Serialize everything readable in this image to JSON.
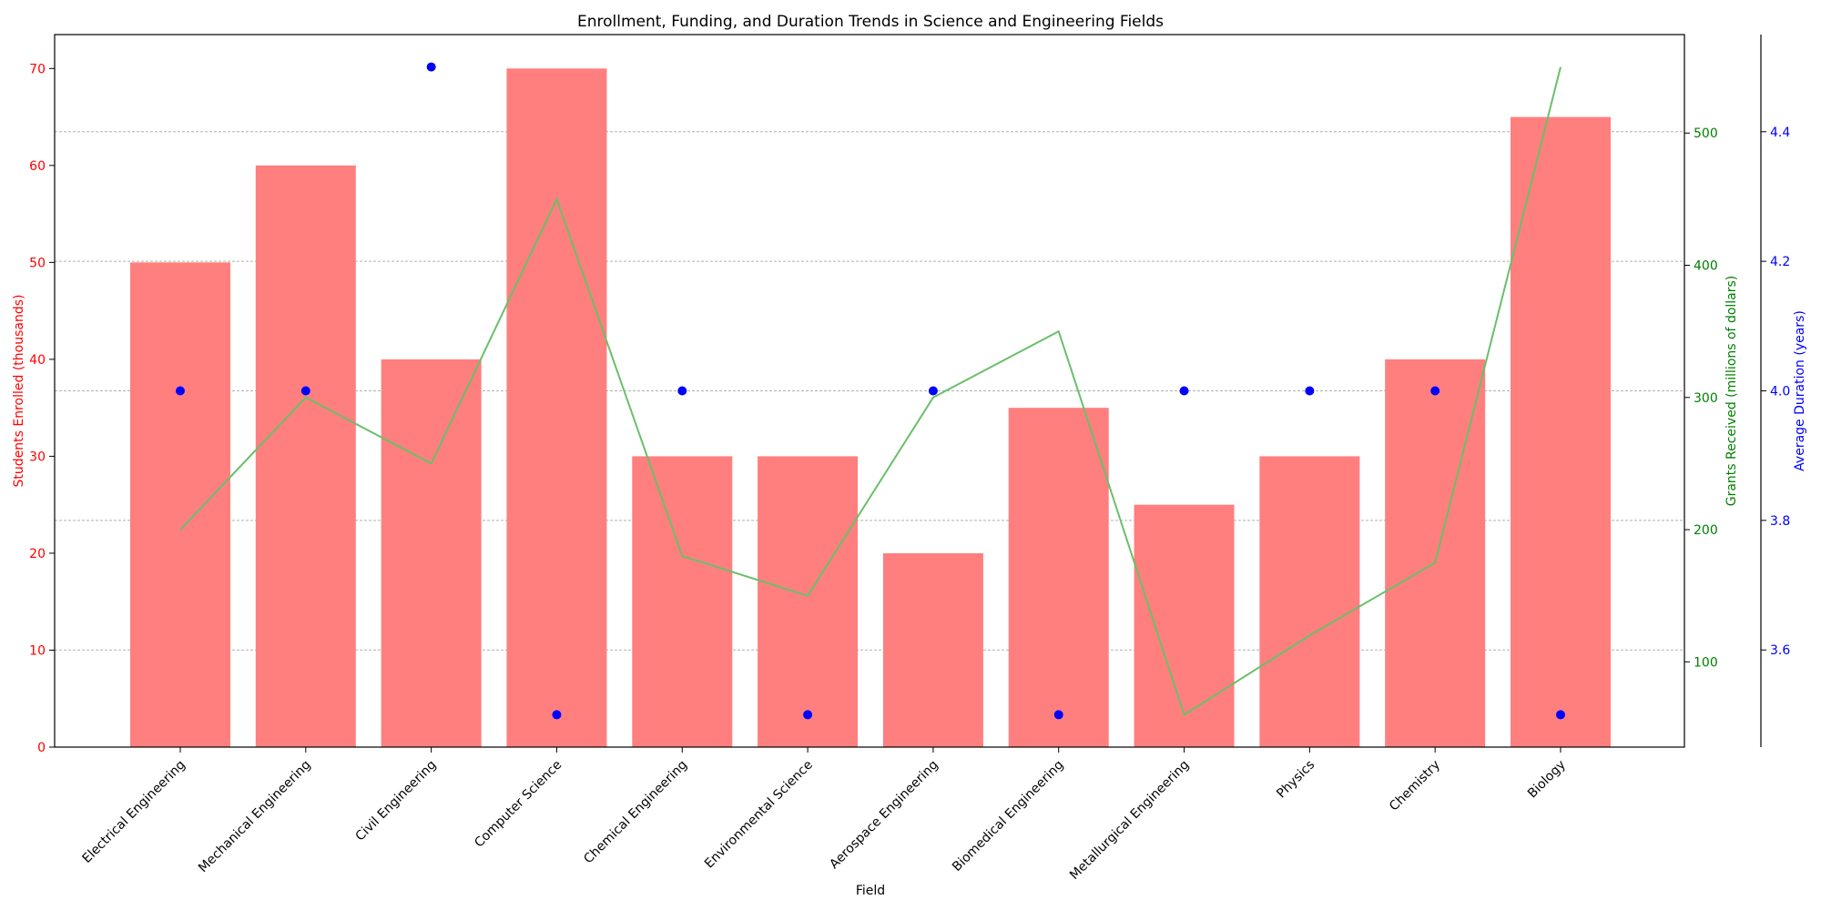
{
  "chart_data": {
    "type": "bar",
    "title": "Enrollment, Funding, and Duration Trends in Science and Engineering Fields",
    "xlabel": "Field",
    "categories": [
      "Electrical Engineering",
      "Mechanical Engineering",
      "Civil Engineering",
      "Computer Science",
      "Chemical Engineering",
      "Environmental Science",
      "Aerospace Engineering",
      "Biomedical Engineering",
      "Metallurgical Engineering",
      "Physics",
      "Chemistry",
      "Biology"
    ],
    "series": [
      {
        "name": "Students Enrolled (thousands)",
        "type": "bar",
        "axis": "left",
        "color": "#ff7f7f",
        "values": [
          50,
          60,
          40,
          70,
          30,
          30,
          20,
          35,
          25,
          30,
          40,
          65
        ]
      },
      {
        "name": "Grants Received (millions of dollars)",
        "type": "line",
        "axis": "right",
        "color": "#6abf6a",
        "values": [
          200,
          300,
          250,
          450,
          180,
          150,
          300,
          350,
          60,
          120,
          175,
          550
        ]
      },
      {
        "name": "Average Duration (years)",
        "type": "scatter",
        "axis": "right2",
        "color": "#0000ff",
        "values": [
          4.0,
          4.0,
          4.5,
          3.5,
          4.0,
          3.5,
          4.0,
          3.5,
          4.0,
          4.0,
          4.0,
          3.5
        ]
      }
    ],
    "axes": {
      "left": {
        "label": "Students Enrolled (thousands)",
        "color": "#ff0000",
        "ylim": [
          0,
          73.5
        ],
        "ticks": [
          0,
          10,
          20,
          30,
          40,
          50,
          60,
          70
        ]
      },
      "right": {
        "label": "Grants Received (millions of dollars)",
        "color": "#008000",
        "ylim": [
          35.5,
          574.5
        ],
        "ticks": [
          100,
          200,
          300,
          400,
          500
        ]
      },
      "right2": {
        "label": "Average Duration (years)",
        "color": "#0000ff",
        "ylim": [
          3.45,
          4.55
        ],
        "ticks": [
          3.6,
          3.8,
          4.0,
          4.2,
          4.4
        ]
      }
    },
    "grid": true
  }
}
